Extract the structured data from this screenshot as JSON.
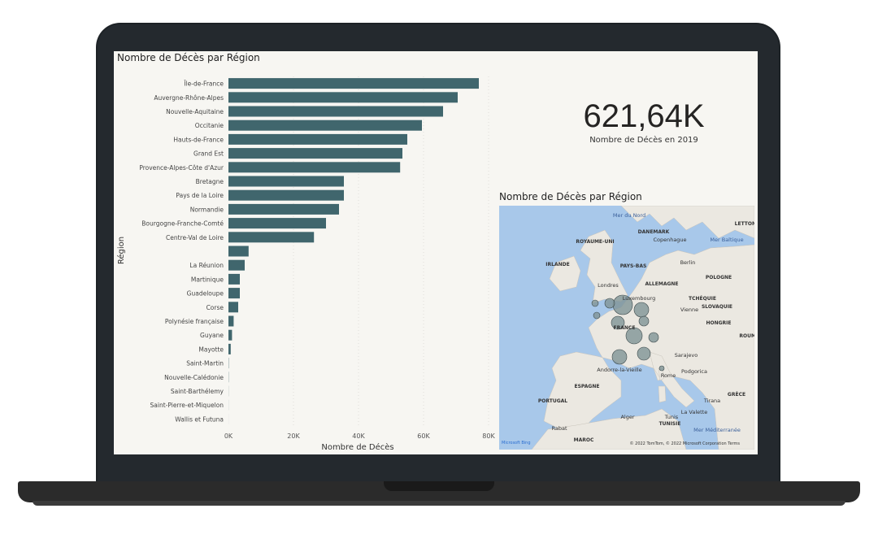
{
  "chart_data": [
    {
      "type": "bar",
      "orientation": "horizontal",
      "title": "Nombre de Décès par Région",
      "xlabel": "Nombre de Décès",
      "ylabel": "Région",
      "xlim": [
        0,
        80000
      ],
      "xticks": [
        "0K",
        "20K",
        "40K",
        "60K",
        "80K"
      ],
      "categories": [
        "Île-de-France",
        "Auvergne-Rhône-Alpes",
        "Nouvelle-Aquitaine",
        "Occitanie",
        "Hauts-de-France",
        "Grand Est",
        "Provence-Alpes-Côte d'Azur",
        "Bretagne",
        "Pays de la Loire",
        "Normandie",
        "Bourgogne-Franche-Comté",
        "Centre-Val de Loire",
        "",
        "La Réunion",
        "Martinique",
        "Guadeloupe",
        "Corse",
        "Polynésie française",
        "Guyane",
        "Mayotte",
        "Saint-Martin",
        "Nouvelle-Calédonie",
        "Saint-Barthélemy",
        "Saint-Pierre-et-Miquelon",
        "Wallis et Futuna"
      ],
      "values": [
        77000,
        70500,
        66000,
        59500,
        55000,
        53500,
        52800,
        35500,
        35500,
        34000,
        30000,
        26300,
        6200,
        5000,
        3500,
        3500,
        3000,
        1600,
        1100,
        700,
        80,
        60,
        30,
        20,
        10
      ],
      "grid": true
    },
    {
      "type": "card",
      "value": "621,64K",
      "label": "Nombre de Décès en 2019"
    },
    {
      "type": "map",
      "title": "Nombre de Décès par Région",
      "labels": [
        "Mer du Nord",
        "DANEMARK",
        "Copenhague",
        "ROYAUME-UNI",
        "IRLANDE",
        "PAYS-BAS",
        "Berlin",
        "POLOGNE",
        "ALLEMAGNE",
        "Londres",
        "Luxembourg",
        "TCHÉQUIE",
        "Vienne",
        "SLOVAQUIE",
        "HONGRIE",
        "FRANCE",
        "Sarajevo",
        "Andorre-la-Vieille",
        "Rome",
        "Podgorica",
        "ESPAGNE",
        "PORTUGAL",
        "GRÈCE",
        "Tirana",
        "Tunis",
        "TUNISIE",
        "Alger",
        "Rabat",
        "MAROC",
        "La Valette",
        "Mer Méditerranée",
        "Mer Baltique",
        "ROUMA",
        "LETTONIE"
      ],
      "copyright": "© 2022 TomTom, © 2022 Microsoft Corporation Terms",
      "logo": "Microsoft Bing"
    }
  ]
}
